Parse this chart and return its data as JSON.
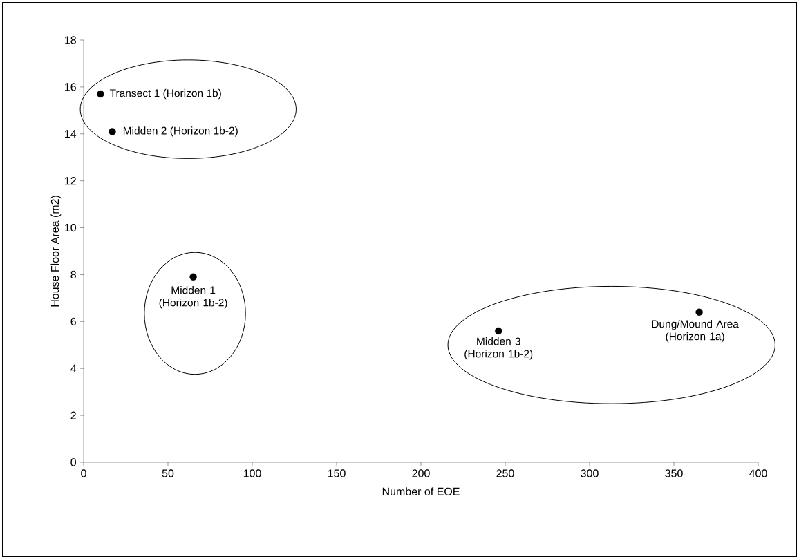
{
  "chart_data": {
    "type": "scatter",
    "xlabel": "Number of EOE",
    "ylabel": "House Floor Area (m2)",
    "x": [
      10,
      17,
      65,
      246,
      365
    ],
    "values": [
      15.7,
      14.1,
      7.9,
      5.6,
      6.4
    ],
    "color": "#000000",
    "marker": "circle",
    "xlim": [
      0,
      400
    ],
    "ylim": [
      0,
      18
    ],
    "xticks": [
      0,
      50,
      100,
      150,
      200,
      250,
      300,
      350,
      400
    ],
    "yticks": [
      0,
      2,
      4,
      6,
      8,
      10,
      12,
      14,
      16,
      18
    ],
    "annotations": [
      {
        "text": "Transect 1 (Horizon 1b)",
        "x": 10,
        "y": 15.7
      },
      {
        "text": "Midden 2 (Horizon 1b-2)",
        "x": 17,
        "y": 14.1
      },
      {
        "text": "Midden 1 (Horizon 1b-2)",
        "x": 65,
        "y": 7.9
      },
      {
        "text": "Midden 3 (Horizon 1b-2)",
        "x": 246,
        "y": 5.6
      },
      {
        "text": "Dung/Mound Area (Horizon 1a)",
        "x": 365,
        "y": 6.4
      }
    ]
  }
}
